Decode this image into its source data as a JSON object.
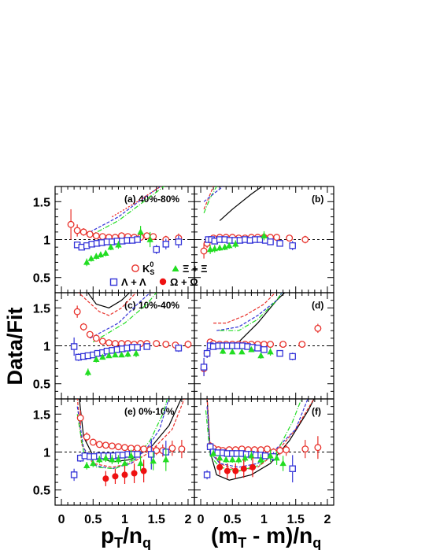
{
  "figure": {
    "ylabel": "Data/Fit",
    "xlabel_left": {
      "main": "p",
      "sub": "T",
      "mid": "/n",
      "sub2": "q"
    },
    "xlabel_right": {
      "pre": "(m",
      "sub": "T",
      "mid": " - m)/n",
      "sub2": "q"
    },
    "xticks": [
      "0",
      "0.5",
      "1",
      "1.5",
      "2"
    ],
    "yticks": [
      "0.5",
      "1",
      "1.5"
    ],
    "legend": [
      {
        "name": "K",
        "sup": "0",
        "sub": "S",
        "marker": "circle-open",
        "color": "#e8302a"
      },
      {
        "name": "Ξ + Ξ",
        "sup": "- / +",
        "marker": "triangle",
        "color": "#22dd22"
      },
      {
        "name": "Λ + Λ",
        "marker": "square-open",
        "color": "#3434d8"
      },
      {
        "name": "Ω + Ω",
        "sup": "- / +",
        "marker": "circle-filled",
        "color": "#ee1111"
      }
    ],
    "colors": {
      "k0s": "#e8302a",
      "lambda": "#3434d8",
      "xi": "#22dd22",
      "omega": "#ee1111",
      "black": "#000000",
      "dashed": "#000000"
    }
  },
  "chart_data": [
    {
      "type": "scatter",
      "panel": "(a) 40%-80%",
      "xlim": [
        -0.1,
        2.1
      ],
      "ylim": [
        0.3,
        1.7
      ],
      "series": [
        {
          "name": "K0S",
          "marker": "circle-open",
          "color": "#e8302a",
          "x": [
            0.15,
            0.25,
            0.35,
            0.45,
            0.55,
            0.65,
            0.75,
            0.85,
            0.95,
            1.05,
            1.15,
            1.25,
            1.35,
            1.45,
            1.65,
            1.85
          ],
          "y": [
            1.2,
            1.12,
            1.1,
            1.07,
            1.05,
            1.04,
            1.03,
            1.03,
            1.05,
            1.04,
            1.03,
            1.03,
            1.05,
            1.04,
            1.0,
            1.02
          ],
          "err": [
            0.2,
            0.08,
            0.05,
            0.03,
            0.02,
            0.02,
            0.02,
            0.02,
            0.02,
            0.02,
            0.02,
            0.02,
            0.03,
            0.04,
            0.05,
            0.06
          ]
        },
        {
          "name": "Lambda",
          "marker": "square-open",
          "color": "#3434d8",
          "x": [
            0.25,
            0.32,
            0.4,
            0.48,
            0.56,
            0.64,
            0.72,
            0.8,
            0.88,
            0.96,
            1.04,
            1.12,
            1.2,
            1.5,
            1.65,
            1.85
          ],
          "y": [
            0.93,
            0.9,
            0.92,
            0.94,
            0.95,
            0.96,
            0.97,
            0.97,
            0.98,
            0.98,
            0.99,
            0.99,
            1.0,
            0.87,
            0.94,
            0.97
          ],
          "err": [
            0.04,
            0.03,
            0.03,
            0.02,
            0.02,
            0.02,
            0.02,
            0.02,
            0.02,
            0.02,
            0.02,
            0.02,
            0.03,
            0.06,
            0.07,
            0.08
          ]
        },
        {
          "name": "Xi",
          "marker": "triangle",
          "color": "#22dd22",
          "x": [
            0.4,
            0.47,
            0.55,
            0.62,
            0.7,
            0.78,
            0.9,
            1.25,
            1.4
          ],
          "y": [
            0.7,
            0.75,
            0.78,
            0.8,
            0.82,
            0.9,
            0.93,
            1.1,
            1.0
          ],
          "err": [
            0.05,
            0.04,
            0.04,
            0.04,
            0.04,
            0.04,
            0.05,
            0.08,
            0.1
          ]
        }
      ]
    },
    {
      "type": "scatter",
      "panel": "(b)",
      "xlim": [
        -0.1,
        2.1
      ],
      "ylim": [
        0.3,
        1.7
      ],
      "series": [
        {
          "name": "K0S",
          "marker": "circle-open",
          "color": "#e8302a",
          "x": [
            0.05,
            0.1,
            0.15,
            0.2,
            0.3,
            0.4,
            0.5,
            0.6,
            0.7,
            0.8,
            0.9,
            1.0,
            1.1,
            1.2,
            1.4,
            1.65
          ],
          "y": [
            0.85,
            0.95,
            1.0,
            1.02,
            1.03,
            1.03,
            1.03,
            1.02,
            1.02,
            1.03,
            1.03,
            1.03,
            1.03,
            1.03,
            1.02,
            1.0
          ],
          "err": [
            0.1,
            0.06,
            0.04,
            0.03,
            0.02,
            0.02,
            0.02,
            0.02,
            0.02,
            0.02,
            0.02,
            0.02,
            0.02,
            0.03,
            0.04,
            0.05
          ]
        },
        {
          "name": "Lambda",
          "marker": "square-open",
          "color": "#3434d8",
          "x": [
            0.12,
            0.17,
            0.22,
            0.3,
            0.38,
            0.46,
            0.54,
            0.62,
            0.7,
            0.78,
            0.86,
            0.94,
            1.02,
            1.1,
            1.25,
            1.45
          ],
          "y": [
            1.0,
            1.0,
            0.98,
            1.0,
            1.0,
            0.99,
            0.99,
            0.99,
            1.0,
            0.99,
            1.0,
            1.0,
            0.99,
            0.97,
            0.95,
            0.92
          ],
          "err": [
            0.04,
            0.03,
            0.03,
            0.02,
            0.02,
            0.02,
            0.02,
            0.02,
            0.02,
            0.02,
            0.02,
            0.02,
            0.02,
            0.03,
            0.04,
            0.06
          ]
        },
        {
          "name": "Xi",
          "marker": "triangle",
          "color": "#22dd22",
          "x": [
            0.15,
            0.22,
            0.3,
            0.38,
            0.45,
            0.55,
            1.0
          ],
          "y": [
            0.87,
            0.88,
            0.89,
            0.9,
            0.92,
            0.94,
            1.05
          ],
          "err": [
            0.06,
            0.05,
            0.04,
            0.04,
            0.04,
            0.05,
            0.06
          ]
        }
      ]
    },
    {
      "type": "scatter",
      "panel": "(c) 10%-40%",
      "xlim": [
        -0.1,
        2.1
      ],
      "ylim": [
        0.3,
        1.7
      ],
      "series": [
        {
          "name": "K0S",
          "marker": "circle-open",
          "color": "#e8302a",
          "x": [
            0.25,
            0.35,
            0.45,
            0.55,
            0.65,
            0.75,
            0.85,
            0.95,
            1.05,
            1.15,
            1.25,
            1.35,
            1.5,
            1.65,
            1.8,
            2.0
          ],
          "y": [
            1.45,
            1.25,
            1.15,
            1.1,
            1.06,
            1.04,
            1.03,
            1.03,
            1.03,
            1.02,
            1.03,
            1.03,
            1.03,
            1.02,
            1.01,
            1.02
          ],
          "err": [
            0.08,
            0.05,
            0.03,
            0.02,
            0.02,
            0.02,
            0.02,
            0.02,
            0.02,
            0.02,
            0.02,
            0.02,
            0.02,
            0.03,
            0.04,
            0.05
          ]
        },
        {
          "name": "Lambda",
          "marker": "square-open",
          "color": "#3434d8",
          "x": [
            0.2,
            0.27,
            0.35,
            0.42,
            0.5,
            0.57,
            0.65,
            0.72,
            0.8,
            0.88,
            0.96,
            1.04,
            1.12,
            1.2,
            1.35,
            1.85
          ],
          "y": [
            0.99,
            0.85,
            0.86,
            0.87,
            0.88,
            0.9,
            0.91,
            0.93,
            0.94,
            0.95,
            0.96,
            0.97,
            0.98,
            0.98,
            0.99,
            0.97
          ],
          "err": [
            0.12,
            0.05,
            0.03,
            0.02,
            0.02,
            0.02,
            0.02,
            0.02,
            0.02,
            0.02,
            0.02,
            0.02,
            0.02,
            0.02,
            0.03,
            0.05
          ]
        },
        {
          "name": "Xi",
          "marker": "triangle",
          "color": "#22dd22",
          "x": [
            0.42,
            0.55,
            0.65,
            0.75,
            0.85,
            0.95,
            1.05,
            1.18
          ],
          "y": [
            0.65,
            0.82,
            0.85,
            0.87,
            0.88,
            0.88,
            0.89,
            0.9
          ],
          "err": [
            0.05,
            0.04,
            0.03,
            0.03,
            0.03,
            0.03,
            0.04,
            0.05
          ]
        }
      ]
    },
    {
      "type": "scatter",
      "panel": "(d)",
      "xlim": [
        -0.1,
        2.1
      ],
      "ylim": [
        0.3,
        1.7
      ],
      "series": [
        {
          "name": "K0S",
          "marker": "circle-open",
          "color": "#e8302a",
          "x": [
            0.05,
            0.1,
            0.15,
            0.2,
            0.3,
            0.4,
            0.5,
            0.6,
            0.7,
            0.8,
            0.9,
            1.0,
            1.1,
            1.3,
            1.6,
            1.85
          ],
          "y": [
            0.7,
            0.9,
            1.05,
            1.03,
            1.02,
            1.02,
            1.02,
            1.02,
            1.02,
            1.02,
            1.02,
            1.02,
            1.02,
            1.02,
            1.02,
            1.23
          ],
          "err": [
            0.1,
            0.06,
            0.04,
            0.03,
            0.02,
            0.02,
            0.02,
            0.02,
            0.02,
            0.02,
            0.02,
            0.02,
            0.02,
            0.03,
            0.04,
            0.06
          ]
        },
        {
          "name": "Lambda",
          "marker": "square-open",
          "color": "#3434d8",
          "x": [
            0.05,
            0.1,
            0.15,
            0.2,
            0.28,
            0.35,
            0.42,
            0.5,
            0.58,
            0.66,
            0.74,
            0.82,
            0.9,
            1.0,
            1.25,
            1.45
          ],
          "y": [
            0.72,
            0.9,
            1.0,
            0.99,
            1.0,
            1.0,
            1.0,
            1.0,
            1.0,
            1.0,
            0.99,
            0.98,
            0.97,
            0.95,
            0.9,
            0.86
          ],
          "err": [
            0.12,
            0.06,
            0.03,
            0.02,
            0.02,
            0.02,
            0.02,
            0.02,
            0.02,
            0.02,
            0.02,
            0.02,
            0.02,
            0.03,
            0.04,
            0.05
          ]
        },
        {
          "name": "Xi",
          "marker": "triangle",
          "color": "#22dd22",
          "x": [
            0.35,
            0.5,
            0.65,
            0.8,
            0.95,
            1.1
          ],
          "y": [
            0.93,
            0.92,
            0.92,
            0.95,
            0.87,
            0.92
          ],
          "err": [
            0.04,
            0.03,
            0.03,
            0.03,
            0.04,
            0.05
          ]
        }
      ]
    },
    {
      "type": "scatter",
      "panel": "(e) 0%-10%",
      "xlim": [
        -0.1,
        2.1
      ],
      "ylim": [
        0.3,
        1.7
      ],
      "series": [
        {
          "name": "K0S",
          "marker": "circle-open",
          "color": "#e8302a",
          "x": [
            0.3,
            0.4,
            0.5,
            0.6,
            0.7,
            0.8,
            0.9,
            1.0,
            1.1,
            1.2,
            1.3,
            1.4,
            1.5,
            1.6,
            1.75,
            1.9
          ],
          "y": [
            1.45,
            1.2,
            1.13,
            1.1,
            1.09,
            1.08,
            1.07,
            1.06,
            1.05,
            1.05,
            1.04,
            1.03,
            1.02,
            1.02,
            1.05,
            1.04
          ],
          "err": [
            0.1,
            0.06,
            0.04,
            0.03,
            0.03,
            0.03,
            0.03,
            0.03,
            0.03,
            0.03,
            0.04,
            0.05,
            0.06,
            0.08,
            0.1,
            0.12
          ]
        },
        {
          "name": "Lambda",
          "marker": "square-open",
          "color": "#3434d8",
          "x": [
            0.2,
            0.3,
            0.37,
            0.45,
            0.52,
            0.6,
            0.67,
            0.75,
            0.82,
            0.9,
            0.97,
            1.05,
            1.12,
            1.2,
            1.42,
            1.65
          ],
          "y": [
            0.7,
            0.92,
            0.95,
            0.94,
            0.94,
            0.95,
            0.95,
            0.95,
            0.95,
            0.96,
            0.96,
            0.97,
            0.97,
            0.97,
            0.97,
            1.0
          ],
          "err": [
            0.08,
            0.05,
            0.03,
            0.03,
            0.02,
            0.02,
            0.02,
            0.02,
            0.02,
            0.02,
            0.02,
            0.03,
            0.03,
            0.04,
            0.2,
            0.15
          ]
        },
        {
          "name": "Xi",
          "marker": "triangle",
          "color": "#22dd22",
          "x": [
            0.4,
            0.5,
            0.6,
            0.7,
            0.8,
            0.9,
            1.0,
            1.1,
            1.25,
            1.45,
            1.65
          ],
          "y": [
            0.82,
            0.85,
            0.9,
            0.92,
            0.9,
            0.9,
            0.85,
            0.95,
            0.85,
            0.88,
            0.9
          ],
          "err": [
            0.05,
            0.05,
            0.05,
            0.05,
            0.06,
            0.06,
            0.07,
            0.08,
            0.1,
            0.12,
            0.15
          ]
        },
        {
          "name": "Omega",
          "marker": "circle-filled",
          "color": "#ee1111",
          "x": [
            0.7,
            0.85,
            1.0,
            1.15,
            1.3
          ],
          "y": [
            0.65,
            0.68,
            0.7,
            0.72,
            0.75
          ],
          "err": [
            0.1,
            0.1,
            0.12,
            0.13,
            0.15
          ]
        }
      ]
    },
    {
      "type": "scatter",
      "panel": "(f)",
      "xlim": [
        -0.1,
        2.1
      ],
      "ylim": [
        0.3,
        1.7
      ],
      "series": [
        {
          "name": "K0S",
          "marker": "circle-open",
          "color": "#e8302a",
          "x": [
            0.15,
            0.2,
            0.28,
            0.35,
            0.45,
            0.55,
            0.65,
            0.75,
            0.85,
            0.95,
            1.05,
            1.15,
            1.25,
            1.35,
            1.65,
            1.85
          ],
          "y": [
            1.08,
            1.05,
            1.03,
            1.02,
            1.03,
            1.03,
            1.04,
            1.03,
            1.03,
            1.03,
            1.04,
            1.0,
            1.02,
            1.03,
            1.04,
            1.06
          ],
          "err": [
            0.05,
            0.04,
            0.03,
            0.03,
            0.03,
            0.03,
            0.03,
            0.03,
            0.03,
            0.03,
            0.04,
            0.05,
            0.06,
            0.08,
            0.12,
            0.15
          ]
        },
        {
          "name": "Lambda",
          "marker": "square-open",
          "color": "#3434d8",
          "x": [
            0.1,
            0.15,
            0.2,
            0.27,
            0.35,
            0.42,
            0.5,
            0.57,
            0.65,
            0.72,
            0.8,
            0.87,
            0.95,
            1.02,
            1.15,
            1.45
          ],
          "y": [
            0.7,
            1.07,
            1.0,
            0.99,
            0.99,
            0.98,
            0.98,
            0.98,
            0.98,
            0.97,
            0.97,
            0.96,
            0.96,
            0.95,
            0.94,
            0.78
          ],
          "err": [
            0.06,
            0.05,
            0.03,
            0.03,
            0.02,
            0.02,
            0.02,
            0.02,
            0.02,
            0.02,
            0.02,
            0.03,
            0.03,
            0.04,
            0.06,
            0.18
          ]
        },
        {
          "name": "Xi",
          "marker": "triangle",
          "color": "#22dd22",
          "x": [
            0.2,
            0.3,
            0.4,
            0.5,
            0.6,
            0.7,
            0.8,
            0.95,
            1.1,
            1.2,
            1.3
          ],
          "y": [
            0.98,
            0.92,
            0.9,
            0.9,
            0.9,
            0.92,
            0.95,
            0.9,
            0.95,
            0.92,
            0.85
          ],
          "err": [
            0.05,
            0.04,
            0.04,
            0.04,
            0.05,
            0.05,
            0.06,
            0.07,
            0.08,
            0.09,
            0.1
          ]
        },
        {
          "name": "Omega",
          "marker": "circle-filled",
          "color": "#ee1111",
          "x": [
            0.3,
            0.42,
            0.55,
            0.68,
            0.82
          ],
          "y": [
            0.8,
            0.75,
            0.75,
            0.78,
            0.8
          ],
          "err": [
            0.1,
            0.1,
            0.1,
            0.12,
            0.13
          ]
        }
      ]
    }
  ]
}
